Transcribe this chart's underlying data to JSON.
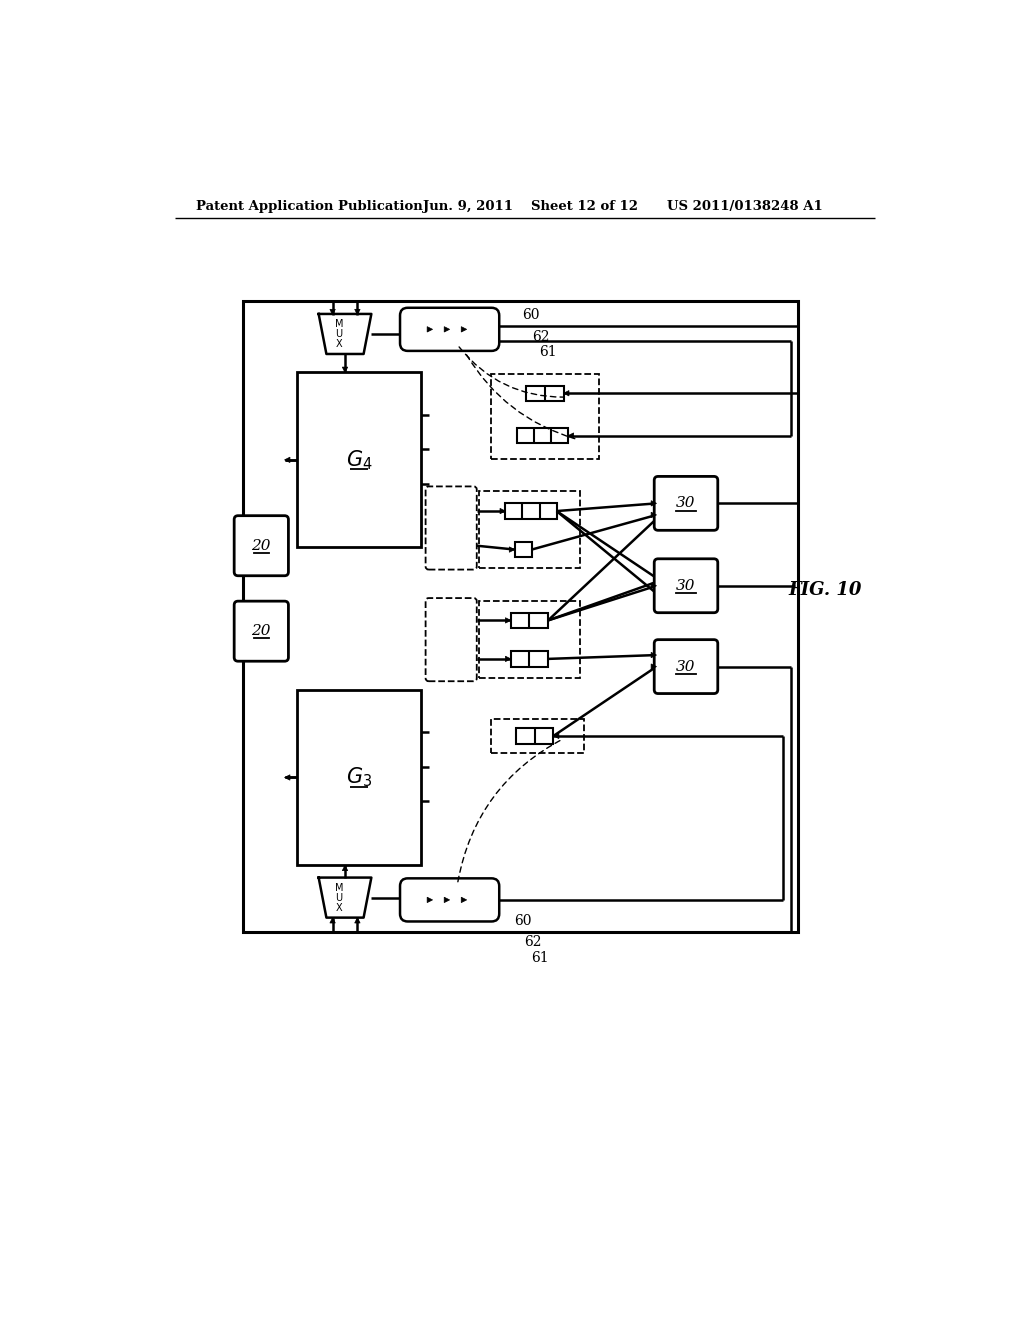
{
  "bg_color": "#ffffff",
  "line_color": "#000000",
  "header_text": "Patent Application Publication",
  "header_date": "Jun. 9, 2011",
  "header_sheet": "Sheet 12 of 12",
  "header_patent": "US 2011/0138248 A1",
  "fig_label": "FIG. 10"
}
